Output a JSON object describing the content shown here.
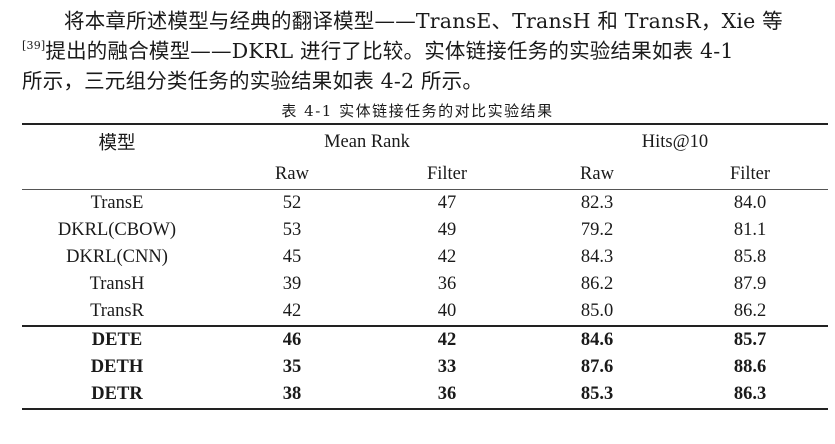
{
  "paragraph": {
    "line1": "将本章所述模型与经典的翻译模型——TransE、TransH 和 TransR，Xie 等",
    "line2_ref": "[39]",
    "line2": "提出的融合模型——DKRL 进行了比较。实体链接任务的实验结果如表 4-1",
    "line3": "所示，三元组分类任务的实验结果如表 4-2 所示。"
  },
  "table": {
    "caption": "表 4-1  实体链接任务的对比实验结果",
    "headers": {
      "model": "模型",
      "mean_rank": "Mean Rank",
      "hits10": "Hits@10",
      "raw": "Raw",
      "filter": "Filter"
    },
    "baseline_rows": [
      {
        "model": "TransE",
        "mr_raw": "52",
        "mr_filter": "47",
        "h_raw": "82.3",
        "h_filter": "84.0"
      },
      {
        "model": "DKRL(CBOW)",
        "mr_raw": "53",
        "mr_filter": "49",
        "h_raw": "79.2",
        "h_filter": "81.1"
      },
      {
        "model": "DKRL(CNN)",
        "mr_raw": "45",
        "mr_filter": "42",
        "h_raw": "84.3",
        "h_filter": "85.8"
      },
      {
        "model": "TransH",
        "mr_raw": "39",
        "mr_filter": "36",
        "h_raw": "86.2",
        "h_filter": "87.9"
      },
      {
        "model": "TransR",
        "mr_raw": "42",
        "mr_filter": "40",
        "h_raw": "85.0",
        "h_filter": "86.2"
      }
    ],
    "proposed_rows": [
      {
        "model": "DETE",
        "mr_raw": "46",
        "mr_filter": "42",
        "h_raw": "84.6",
        "h_filter": "85.7"
      },
      {
        "model": "DETH",
        "mr_raw": "35",
        "mr_filter": "33",
        "h_raw": "87.6",
        "h_filter": "88.6"
      },
      {
        "model": "DETR",
        "mr_raw": "38",
        "mr_filter": "36",
        "h_raw": "85.3",
        "h_filter": "86.3"
      }
    ]
  }
}
